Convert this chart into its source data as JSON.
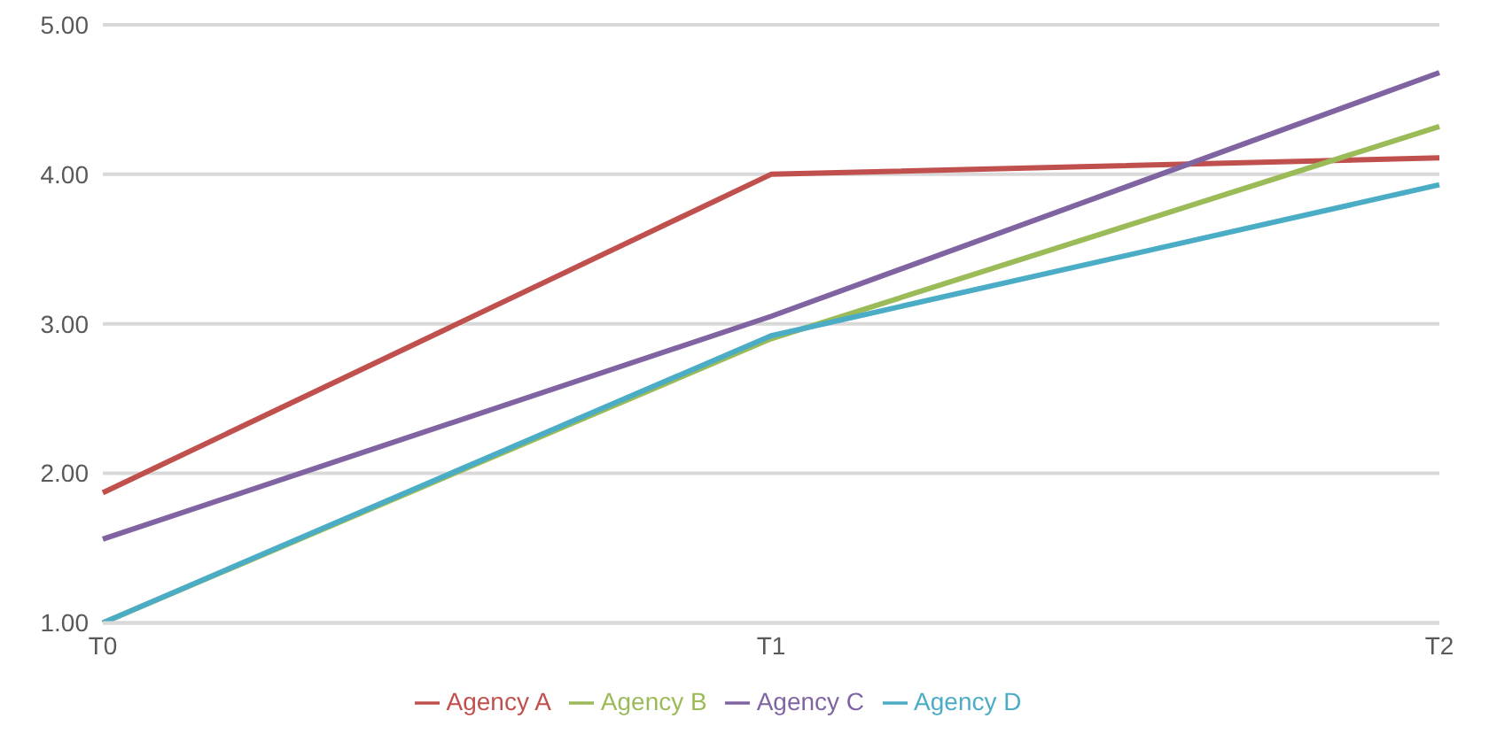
{
  "chart_data": {
    "type": "line",
    "categories": [
      "T0",
      "T1",
      "T2"
    ],
    "series": [
      {
        "name": "Agency A",
        "color": "#c0504d",
        "values": [
          1.87,
          4.0,
          4.11
        ]
      },
      {
        "name": "Agency B",
        "color": "#9bbb59",
        "values": [
          1.0,
          2.9,
          4.32
        ]
      },
      {
        "name": "Agency C",
        "color": "#8064a2",
        "values": [
          1.56,
          3.05,
          4.68
        ]
      },
      {
        "name": "Agency D",
        "color": "#4bacc6",
        "values": [
          1.0,
          2.92,
          3.93
        ]
      }
    ],
    "ylim": [
      1,
      5
    ],
    "yticks": [
      {
        "value": 1,
        "label": "1.00"
      },
      {
        "value": 2,
        "label": "2.00"
      },
      {
        "value": 3,
        "label": "3.00"
      },
      {
        "value": 4,
        "label": "4.00"
      },
      {
        "value": 5,
        "label": "5.00"
      }
    ],
    "grid": "y",
    "legend": "bottom",
    "marker": "none",
    "line_style": "solid"
  }
}
